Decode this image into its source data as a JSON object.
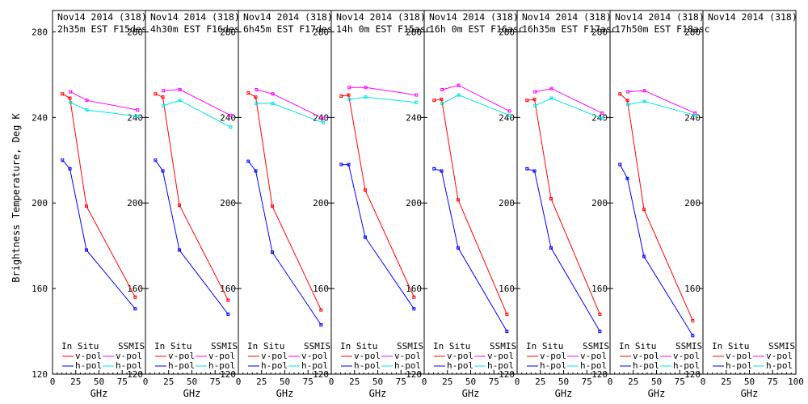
{
  "figure": {
    "ylabel": "Brightness Temperature, Deg K",
    "legend": {
      "insitu_label": "In Situ",
      "ssmis_label": "SSMIS",
      "vpol_label": "v-pol",
      "hpol_label": "h-pol"
    }
  },
  "colors": {
    "insitu_v": "#ff0000",
    "insitu_h": "#0000ff",
    "ssmis_v": "#ff00ff",
    "ssmis_h": "#00e5e5",
    "axes": "#000000"
  },
  "chart_data": [
    {
      "type": "line",
      "title_line1": "Nov14 2014 (318)",
      "title_line2": "2h35m EST F15des",
      "xlabel": "GHz",
      "xlim": [
        0,
        100
      ],
      "xticks": [
        "0",
        "25",
        "50",
        "75"
      ],
      "ylim": [
        120,
        290
      ],
      "yticks": [
        "120",
        "160",
        "200",
        "240",
        "280"
      ],
      "series": [
        {
          "name": "In Situ v-pol",
          "x": [
            10.7,
            18.7,
            36.5,
            89
          ],
          "y": [
            251,
            249,
            198.5,
            156
          ]
        },
        {
          "name": "In Situ h-pol",
          "x": [
            10.7,
            18.7,
            36.5,
            89
          ],
          "y": [
            220,
            216,
            178,
            150.5
          ]
        },
        {
          "name": "SSMIS v-pol",
          "x": [
            19.35,
            37,
            91.655
          ],
          "y": [
            252,
            248,
            243.5
          ]
        },
        {
          "name": "SSMIS h-pol",
          "x": [
            19.35,
            37,
            91.655
          ],
          "y": [
            247,
            243.5,
            240.5
          ]
        }
      ]
    },
    {
      "type": "line",
      "title_line1": "Nov14 2014 (318)",
      "title_line2": "4h30m EST F16des",
      "xlabel": "GHz",
      "xlim": [
        0,
        100
      ],
      "xticks": [
        "0",
        "25",
        "50",
        "75"
      ],
      "ylim": [
        120,
        290
      ],
      "yticks": [
        "120",
        "160",
        "200",
        "240",
        "280"
      ],
      "series": [
        {
          "name": "In Situ v-pol",
          "x": [
            10.7,
            18.7,
            36.5,
            89
          ],
          "y": [
            251,
            249.5,
            199,
            154.5
          ]
        },
        {
          "name": "In Situ h-pol",
          "x": [
            10.7,
            18.7,
            36.5,
            89
          ],
          "y": [
            220,
            215,
            178,
            148
          ]
        },
        {
          "name": "SSMIS v-pol",
          "x": [
            19.35,
            37,
            91.655
          ],
          "y": [
            252.5,
            253,
            241
          ]
        },
        {
          "name": "SSMIS h-pol",
          "x": [
            19.35,
            37,
            91.655
          ],
          "y": [
            245.5,
            248,
            235.5
          ]
        }
      ]
    },
    {
      "type": "line",
      "title_line1": "Nov14 2014 (318)",
      "title_line2": "6h45m EST F17des",
      "xlabel": "GHz",
      "xlim": [
        0,
        100
      ],
      "xticks": [
        "0",
        "25",
        "50",
        "75"
      ],
      "ylim": [
        120,
        290
      ],
      "yticks": [
        "120",
        "160",
        "200",
        "240",
        "280"
      ],
      "series": [
        {
          "name": "In Situ v-pol",
          "x": [
            10.7,
            18.7,
            36.5,
            89
          ],
          "y": [
            251.5,
            249.5,
            198.5,
            150
          ]
        },
        {
          "name": "In Situ h-pol",
          "x": [
            10.7,
            18.7,
            36.5,
            89
          ],
          "y": [
            219.5,
            215,
            177,
            143
          ]
        },
        {
          "name": "SSMIS v-pol",
          "x": [
            19.35,
            37,
            91.655
          ],
          "y": [
            253,
            251,
            239.5
          ]
        },
        {
          "name": "SSMIS h-pol",
          "x": [
            19.35,
            37,
            91.655
          ],
          "y": [
            246.5,
            246.5,
            237.5
          ]
        }
      ]
    },
    {
      "type": "line",
      "title_line1": "Nov14 2014 (318)",
      "title_line2": "14h 0m EST F15asc",
      "xlabel": "GHz",
      "xlim": [
        0,
        100
      ],
      "xticks": [
        "0",
        "25",
        "50",
        "75"
      ],
      "ylim": [
        120,
        290
      ],
      "yticks": [
        "120",
        "160",
        "200",
        "240",
        "280"
      ],
      "series": [
        {
          "name": "In Situ v-pol",
          "x": [
            10.7,
            18.7,
            36.5,
            89
          ],
          "y": [
            250,
            250.5,
            206,
            156
          ]
        },
        {
          "name": "In Situ h-pol",
          "x": [
            10.7,
            18.7,
            36.5,
            89
          ],
          "y": [
            218,
            218,
            184,
            150.5
          ]
        },
        {
          "name": "SSMIS v-pol",
          "x": [
            19.35,
            37,
            91.655
          ],
          "y": [
            254,
            254,
            250.5
          ]
        },
        {
          "name": "SSMIS h-pol",
          "x": [
            19.35,
            37,
            91.655
          ],
          "y": [
            248.5,
            249.5,
            247
          ]
        }
      ]
    },
    {
      "type": "line",
      "title_line1": "Nov14 2014 (318)",
      "title_line2": "16h 0m EST F16asc",
      "xlabel": "GHz",
      "xlim": [
        0,
        100
      ],
      "xticks": [
        "0",
        "25",
        "50",
        "75"
      ],
      "ylim": [
        120,
        290
      ],
      "yticks": [
        "120",
        "160",
        "200",
        "240",
        "280"
      ],
      "series": [
        {
          "name": "In Situ v-pol",
          "x": [
            10.7,
            18.7,
            36.5,
            89
          ],
          "y": [
            248,
            248.5,
            201.5,
            148
          ]
        },
        {
          "name": "In Situ h-pol",
          "x": [
            10.7,
            18.7,
            36.5,
            89
          ],
          "y": [
            216,
            215,
            179,
            140
          ]
        },
        {
          "name": "SSMIS v-pol",
          "x": [
            19.35,
            37,
            91.655
          ],
          "y": [
            253,
            255,
            243
          ]
        },
        {
          "name": "SSMIS h-pol",
          "x": [
            19.35,
            37,
            91.655
          ],
          "y": [
            246.5,
            250.5,
            241
          ]
        }
      ]
    },
    {
      "type": "line",
      "title_line1": "Nov14 2014 (318)",
      "title_line2": "16h35m EST F17asc",
      "xlabel": "GHz",
      "xlim": [
        0,
        100
      ],
      "xticks": [
        "0",
        "25",
        "50",
        "75"
      ],
      "ylim": [
        120,
        290
      ],
      "yticks": [
        "120",
        "160",
        "200",
        "240",
        "280"
      ],
      "series": [
        {
          "name": "In Situ v-pol",
          "x": [
            10.7,
            18.7,
            36.5,
            89
          ],
          "y": [
            248,
            248.5,
            202,
            148
          ]
        },
        {
          "name": "In Situ h-pol",
          "x": [
            10.7,
            18.7,
            36.5,
            89
          ],
          "y": [
            216,
            215,
            179,
            140
          ]
        },
        {
          "name": "SSMIS v-pol",
          "x": [
            19.35,
            37,
            91.655
          ],
          "y": [
            252,
            253.5,
            242
          ]
        },
        {
          "name": "SSMIS h-pol",
          "x": [
            19.35,
            37,
            91.655
          ],
          "y": [
            245.5,
            249,
            239.5
          ]
        }
      ]
    },
    {
      "type": "line",
      "title_line1": "Nov14 2014 (318)",
      "title_line2": "17h50m EST F18asc",
      "xlabel": "GHz",
      "xlim": [
        0,
        100
      ],
      "xticks": [
        "0",
        "25",
        "50",
        "75"
      ],
      "ylim": [
        120,
        290
      ],
      "yticks": [
        "120",
        "160",
        "200",
        "240",
        "280"
      ],
      "series": [
        {
          "name": "In Situ v-pol",
          "x": [
            10.7,
            18.7,
            36.5,
            89
          ],
          "y": [
            251,
            248,
            197,
            145
          ]
        },
        {
          "name": "In Situ h-pol",
          "x": [
            10.7,
            18.7,
            36.5,
            89
          ],
          "y": [
            218,
            211.5,
            175,
            138
          ]
        },
        {
          "name": "SSMIS v-pol",
          "x": [
            19.35,
            37,
            91.655
          ],
          "y": [
            252,
            252.5,
            242
          ]
        },
        {
          "name": "SSMIS h-pol",
          "x": [
            19.35,
            37,
            91.655
          ],
          "y": [
            246,
            247.5,
            241
          ]
        }
      ]
    },
    {
      "type": "line",
      "title_line1": "Nov14 2014 (318)",
      "title_line2": "",
      "xlabel": "GHz",
      "xlim": [
        0,
        100
      ],
      "xticks": [
        "0",
        "25",
        "50",
        "75",
        "100"
      ],
      "ylim": [
        120,
        290
      ],
      "yticks": [],
      "series": []
    }
  ]
}
